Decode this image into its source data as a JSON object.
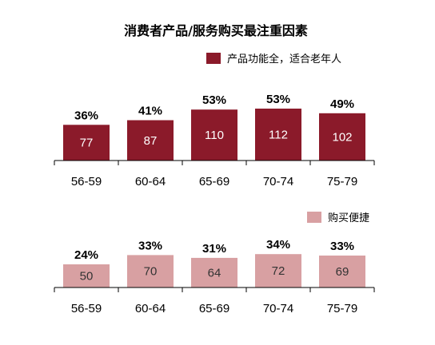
{
  "chart_data": {
    "title": "消费者产品/服务购买最注重因素",
    "type": "bar",
    "categories": [
      "56-59",
      "60-64",
      "65-69",
      "70-74",
      "75-79"
    ],
    "panels": [
      {
        "series_name": "产品功能全，适合老年人",
        "color": "#8B1A2A",
        "value_color": "#ffffff",
        "values": [
          77,
          87,
          110,
          112,
          102
        ],
        "percent_labels": [
          "36%",
          "41%",
          "53%",
          "53%",
          "49%"
        ],
        "legend": "top-right"
      },
      {
        "series_name": "购买便捷",
        "color": "#D8A0A2",
        "value_color": "#333333",
        "values": [
          50,
          70,
          64,
          72,
          69
        ],
        "percent_labels": [
          "24%",
          "33%",
          "31%",
          "34%",
          "33%"
        ],
        "legend": "top-right"
      }
    ]
  }
}
